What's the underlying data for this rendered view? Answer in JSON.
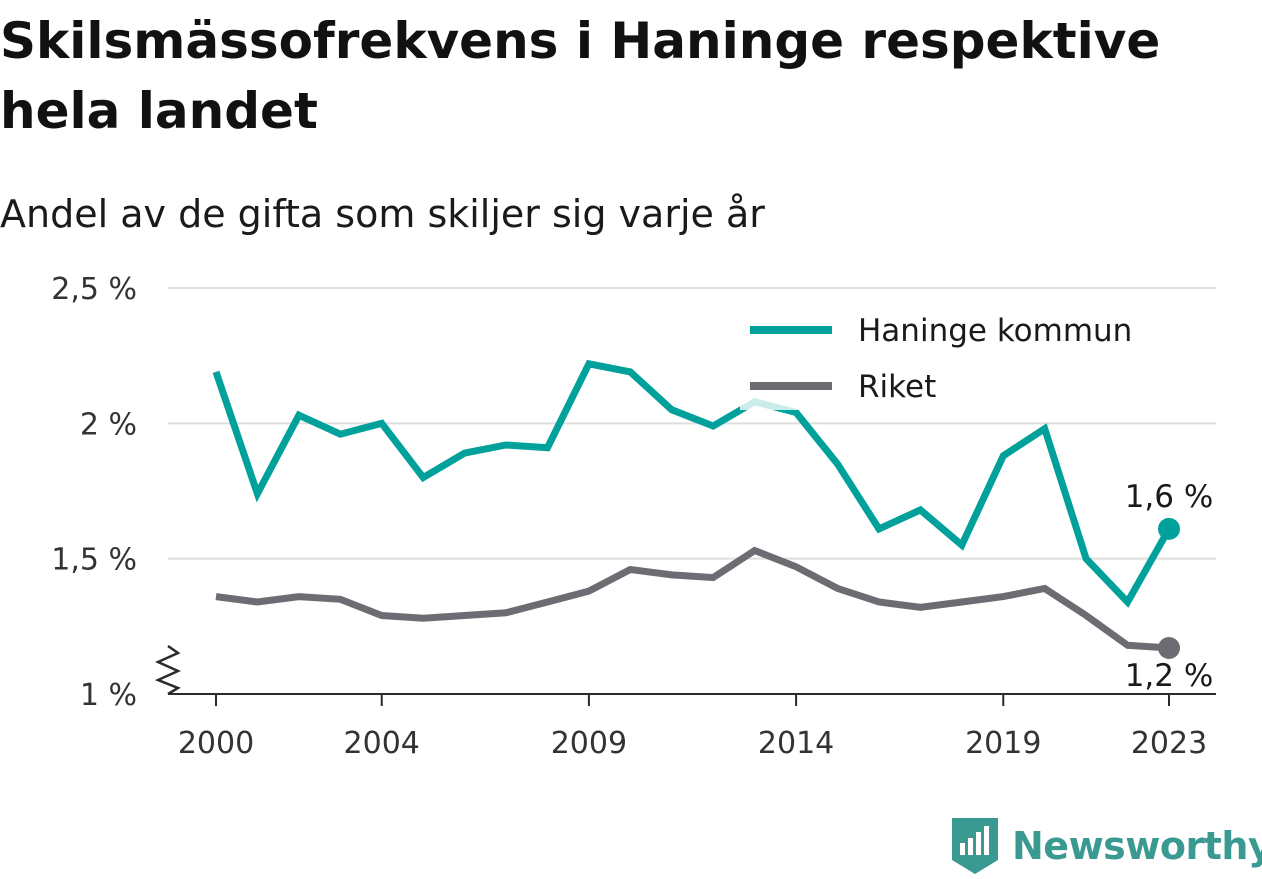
{
  "header": {
    "title": "Skilsmässofrekvens i Haninge respektive hela landet",
    "subtitle": "Andel av de gifta som skiljer sig varje år"
  },
  "chart_data": {
    "type": "line",
    "title": "Skilsmässofrekvens i Haninge respektive hela landet",
    "subtitle": "Andel av de gifta som skiljer sig varje år",
    "xlabel": "",
    "ylabel": "",
    "x": [
      2000,
      2001,
      2002,
      2003,
      2004,
      2005,
      2006,
      2007,
      2008,
      2009,
      2010,
      2011,
      2012,
      2013,
      2014,
      2015,
      2016,
      2017,
      2018,
      2019,
      2020,
      2021,
      2022,
      2023
    ],
    "x_tick_labels": [
      "2000",
      "2004",
      "2009",
      "2014",
      "2019",
      "2023"
    ],
    "x_tick_values": [
      2000,
      2004,
      2009,
      2014,
      2019,
      2023
    ],
    "y_tick_labels": [
      "1 %",
      "1,5 %",
      "2 %",
      "2,5 %"
    ],
    "y_tick_values": [
      1.0,
      1.5,
      2.0,
      2.5
    ],
    "ylim": [
      1.0,
      2.5
    ],
    "y_axis_broken": true,
    "grid": "horizontal",
    "legend_position": "top-right",
    "series": [
      {
        "name": "Haninge kommun",
        "color": "#00a19a",
        "values": [
          2.19,
          1.74,
          2.03,
          1.96,
          2.0,
          1.8,
          1.89,
          1.92,
          1.91,
          2.22,
          2.19,
          2.05,
          1.99,
          2.08,
          2.04,
          1.85,
          1.61,
          1.68,
          1.55,
          1.88,
          1.98,
          1.5,
          1.34,
          1.61
        ],
        "end_label": "1,6 %"
      },
      {
        "name": "Riket",
        "color": "#6d6c72",
        "values": [
          1.36,
          1.34,
          1.36,
          1.35,
          1.29,
          1.28,
          1.29,
          1.3,
          1.34,
          1.38,
          1.46,
          1.44,
          1.43,
          1.53,
          1.47,
          1.39,
          1.34,
          1.32,
          1.34,
          1.36,
          1.39,
          1.29,
          1.18,
          1.17
        ],
        "end_label": "1,2 %"
      }
    ]
  },
  "branding": {
    "name": "Newsworthy",
    "color": "#3a9a92",
    "icon": "newsworthy-logo-icon"
  }
}
